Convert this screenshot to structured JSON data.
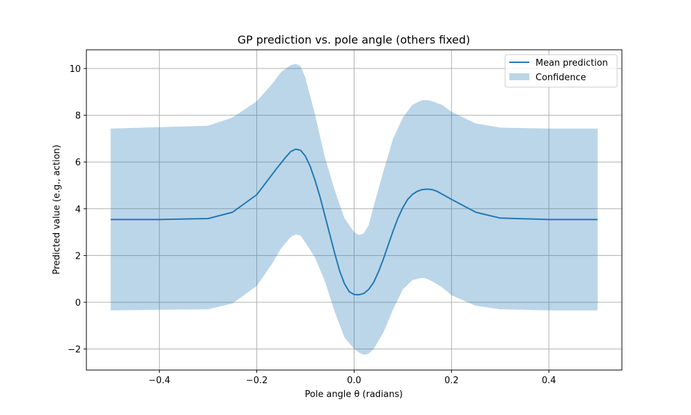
{
  "chart_data": {
    "type": "line",
    "title": "GP prediction vs. pole angle (others fixed)",
    "xlabel": "Pole angle θ (radians)",
    "ylabel": "Predicted value (e.g., action)",
    "xlim": [
      -0.55,
      0.55
    ],
    "ylim": [
      -2.9,
      10.8
    ],
    "xticks": [
      -0.4,
      -0.2,
      0.0,
      0.2,
      0.4
    ],
    "xtick_labels": [
      "−0.4",
      "−0.2",
      "0.0",
      "0.2",
      "0.4"
    ],
    "yticks": [
      -2,
      0,
      2,
      4,
      6,
      8,
      10
    ],
    "ytick_labels": [
      "−2",
      "0",
      "2",
      "4",
      "6",
      "8",
      "10"
    ],
    "grid": true,
    "legend_position": "upper-right",
    "colors": {
      "line": "#1f77b4",
      "band": "#1f77b4",
      "band_opacity": 0.3,
      "grid": "#b0b0b0"
    },
    "series": [
      {
        "name": "Mean prediction",
        "x": [
          -0.5,
          -0.4,
          -0.3,
          -0.25,
          -0.2,
          -0.16,
          -0.14,
          -0.13,
          -0.12,
          -0.11,
          -0.1,
          -0.09,
          -0.08,
          -0.07,
          -0.06,
          -0.05,
          -0.04,
          -0.03,
          -0.02,
          -0.01,
          0.0,
          0.01,
          0.02,
          0.03,
          0.04,
          0.05,
          0.06,
          0.07,
          0.08,
          0.09,
          0.1,
          0.11,
          0.12,
          0.13,
          0.14,
          0.15,
          0.16,
          0.17,
          0.2,
          0.25,
          0.3,
          0.4,
          0.5
        ],
        "y": [
          3.54,
          3.54,
          3.58,
          3.85,
          4.6,
          5.7,
          6.22,
          6.45,
          6.55,
          6.5,
          6.25,
          5.8,
          5.2,
          4.5,
          3.7,
          2.9,
          2.1,
          1.35,
          0.8,
          0.45,
          0.33,
          0.32,
          0.38,
          0.55,
          0.85,
          1.3,
          1.85,
          2.45,
          3.05,
          3.6,
          4.05,
          4.4,
          4.62,
          4.75,
          4.82,
          4.84,
          4.82,
          4.75,
          4.4,
          3.85,
          3.6,
          3.54,
          3.54
        ]
      },
      {
        "name": "Confidence",
        "x": [
          -0.5,
          -0.3,
          -0.25,
          -0.2,
          -0.17,
          -0.15,
          -0.13,
          -0.12,
          -0.11,
          -0.1,
          -0.08,
          -0.06,
          -0.04,
          -0.02,
          0.0,
          0.01,
          0.02,
          0.03,
          0.04,
          0.06,
          0.08,
          0.1,
          0.12,
          0.14,
          0.15,
          0.16,
          0.18,
          0.2,
          0.25,
          0.3,
          0.4,
          0.5
        ],
        "upper": [
          7.43,
          7.55,
          7.9,
          8.6,
          9.3,
          9.85,
          10.15,
          10.2,
          10.1,
          9.6,
          8.0,
          6.2,
          4.8,
          3.6,
          3.0,
          2.88,
          2.95,
          3.3,
          4.1,
          5.6,
          7.0,
          7.9,
          8.45,
          8.65,
          8.65,
          8.6,
          8.45,
          8.15,
          7.65,
          7.47,
          7.43,
          7.43
        ],
        "lower": [
          -0.35,
          -0.3,
          -0.05,
          0.7,
          1.6,
          2.3,
          2.8,
          2.9,
          2.85,
          2.55,
          1.9,
          0.9,
          -0.4,
          -1.5,
          -2.0,
          -2.15,
          -2.25,
          -2.2,
          -2.0,
          -1.3,
          -0.3,
          0.55,
          0.95,
          1.05,
          1.0,
          0.9,
          0.65,
          0.3,
          -0.15,
          -0.3,
          -0.35,
          -0.35
        ]
      }
    ]
  }
}
